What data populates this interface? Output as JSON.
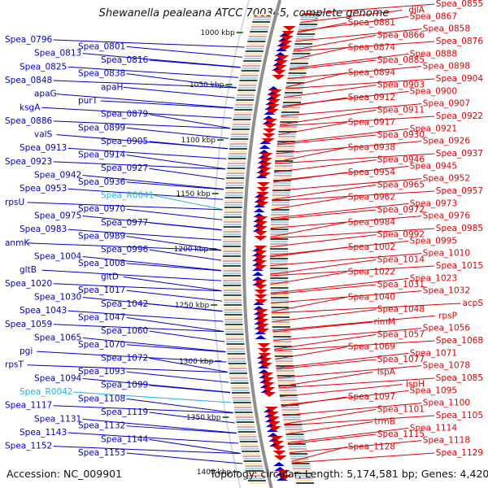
{
  "header": {
    "title": "Shewanella pealeana ATCC 700345, complete genome"
  },
  "footer": {
    "accession": "Accession: NC_009901",
    "summary": "Topology: circular; Length: 5,174,581 bp; Genes: 4,420"
  },
  "colors": {
    "left_gene": "#0000cc",
    "left_rna": "#2ab3d6",
    "right_gene": "#e00000",
    "backbone": "#909090",
    "tick": "#2e7d32"
  },
  "ticks": [
    "1000 kbp",
    "1050 kbp",
    "1100 kbp",
    "1150 kbp",
    "1200 kbp",
    "1250 kbp",
    "1300 kbp",
    "1350 kbp",
    "1400 kbp"
  ],
  "left_labels": [
    "Spea_0796",
    "Spea_0801",
    "Spea_0813",
    "Spea_0816",
    "Spea_0825",
    "Spea_0838",
    "Spea_0848",
    "apaH",
    "apaG",
    "purT",
    "ksgA",
    "Spea_0879",
    "Spea_0886",
    "Spea_0899",
    "valS",
    "Spea_0905",
    "Spea_0913",
    "Spea_0914",
    "Spea_0923",
    "Spea_0927",
    "Spea_0942",
    "Spea_0936",
    "Spea_0953",
    "Spea_R0041",
    "rpsU",
    "Spea_0970",
    "Spea_0975",
    "Spea_0977",
    "Spea_0983",
    "Spea_0989",
    "anmK",
    "Spea_0996",
    "Spea_1004",
    "Spea_1008",
    "gltB",
    "gltD",
    "Spea_1020",
    "Spea_1017",
    "Spea_1030",
    "Spea_1042",
    "Spea_1043",
    "Spea_1047",
    "Spea_1059",
    "Spea_1060",
    "Spea_1065",
    "Spea_1070",
    "pgi",
    "Spea_1072",
    "rpsT",
    "Spea_1093",
    "Spea_1094",
    "Spea_1099",
    "Spea_R0042",
    "Spea_1108",
    "Spea_1117",
    "Spea_1119",
    "Spea_1131",
    "Spea_1132",
    "Spea_1143",
    "Spea_1144",
    "Spea_1152",
    "Spea_1153"
  ],
  "right_labels": [
    "Spea_0855",
    "djlA",
    "Spea_0867",
    "Spea_0881",
    "Spea_0858",
    "Spea_0866",
    "Spea_0876",
    "Spea_0874",
    "Spea_0888",
    "Spea_0885",
    "Spea_0898",
    "Spea_0894",
    "Spea_0904",
    "Spea_0903",
    "Spea_0900",
    "Spea_0912",
    "Spea_0907",
    "Spea_0911",
    "Spea_0922",
    "Spea_0917",
    "Spea_0921",
    "Spea_0930",
    "Spea_0926",
    "Spea_0938",
    "Spea_0937",
    "Spea_0946",
    "Spea_0945",
    "Spea_0954",
    "Spea_0952",
    "Spea_0965",
    "Spea_0957",
    "Spea_0962",
    "Spea_0973",
    "Spea_0972",
    "Spea_0976",
    "Spea_0984",
    "Spea_0985",
    "Spea_0992",
    "Spea_0995",
    "Spea_1002",
    "Spea_1010",
    "Spea_1014",
    "Spea_1015",
    "Spea_1022",
    "Spea_1023",
    "Spea_1031",
    "Spea_1032",
    "Spea_1040",
    "acpS",
    "Spea_1048",
    "rpsP",
    "rimM",
    "Spea_1056",
    "Spea_1057",
    "Spea_1068",
    "Spea_1069",
    "Spea_1071",
    "Spea_1077",
    "Spea_1078",
    "ispA",
    "Spea_1085",
    "ispH",
    "Spea_1095",
    "Spea_1097",
    "Spea_1100",
    "Spea_1101",
    "Spea_1105",
    "trmB",
    "Spea_1114",
    "Spea_1115",
    "Spea_1118",
    "Spea_1128",
    "Spea_1129"
  ]
}
